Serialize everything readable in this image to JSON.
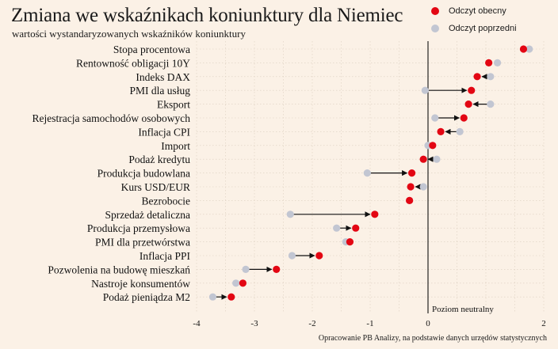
{
  "title": "Zmiana we wskaźnikach koniunktury dla Niemiec",
  "subtitle": "wartości wystandaryzowanych wskaźników koniunktury",
  "source": "Opracowanie PB Analizy, na podstawie danych urzędów statystycznych",
  "colors": {
    "current": "#e30613",
    "previous": "#c2c6d2",
    "arrow": "#111111",
    "grid": "#dccfc0",
    "zero_line": "#111111"
  },
  "legend": [
    {
      "label": "Odczyt obecny",
      "color": "#e30613"
    },
    {
      "label": "Odczyt poprzedni",
      "color": "#c2c6d2"
    }
  ],
  "chart_data": {
    "type": "dot-arrow",
    "title": "Zmiana we wskaźnikach koniunktury dla Niemiec",
    "subtitle": "wartości wystandaryzowanych wskaźników koniunktury",
    "xlim": [
      -4,
      2
    ],
    "xticks": [
      -4,
      -3,
      -2,
      -1,
      0,
      2
    ],
    "xtick_labels": [
      "-4",
      "-3",
      "-2",
      "-1",
      "0",
      "2"
    ],
    "reference_line": {
      "x": 0,
      "label": "Poziom neutralny"
    },
    "grid": true,
    "legend_position": "top-right",
    "series": [
      {
        "name": "Odczyt obecny",
        "key": "current"
      },
      {
        "name": "Odczyt poprzedni",
        "key": "previous"
      }
    ],
    "categories": [
      {
        "label": "Stopa procentowa",
        "current": 1.65,
        "previous": 1.75
      },
      {
        "label": "Rentowność obligacji 10Y",
        "current": 1.05,
        "previous": 1.2
      },
      {
        "label": "Indeks DAX",
        "current": 0.85,
        "previous": 1.08
      },
      {
        "label": "PMI dla usług",
        "current": 0.75,
        "previous": -0.05
      },
      {
        "label": "Eksport",
        "current": 0.7,
        "previous": 1.08
      },
      {
        "label": "Rejestracja samochodów osobowych",
        "current": 0.62,
        "previous": 0.12
      },
      {
        "label": "Inflacja CPI",
        "current": 0.22,
        "previous": 0.55
      },
      {
        "label": "Import",
        "current": 0.08,
        "previous": 0.0
      },
      {
        "label": "Podaż kredytu",
        "current": -0.08,
        "previous": 0.15
      },
      {
        "label": "Produkcja budowlana",
        "current": -0.28,
        "previous": -1.05
      },
      {
        "label": "Kurs USD/EUR",
        "current": -0.3,
        "previous": -0.08
      },
      {
        "label": "Bezrobocie",
        "current": -0.32,
        "previous": -0.32
      },
      {
        "label": "Sprzedaż detaliczna",
        "current": -0.92,
        "previous": -2.38
      },
      {
        "label": "Produkcja przemysłowa",
        "current": -1.25,
        "previous": -1.58
      },
      {
        "label": "PMI dla przetwórstwa",
        "current": -1.35,
        "previous": -1.42
      },
      {
        "label": "Inflacja PPI",
        "current": -1.88,
        "previous": -2.35
      },
      {
        "label": "Pozwolenia na budowę mieszkań",
        "current": -2.62,
        "previous": -3.15
      },
      {
        "label": "Nastroje konsumentów",
        "current": -3.2,
        "previous": -3.32
      },
      {
        "label": "Podaż pieniądza M2",
        "current": -3.4,
        "previous": -3.72
      }
    ]
  }
}
